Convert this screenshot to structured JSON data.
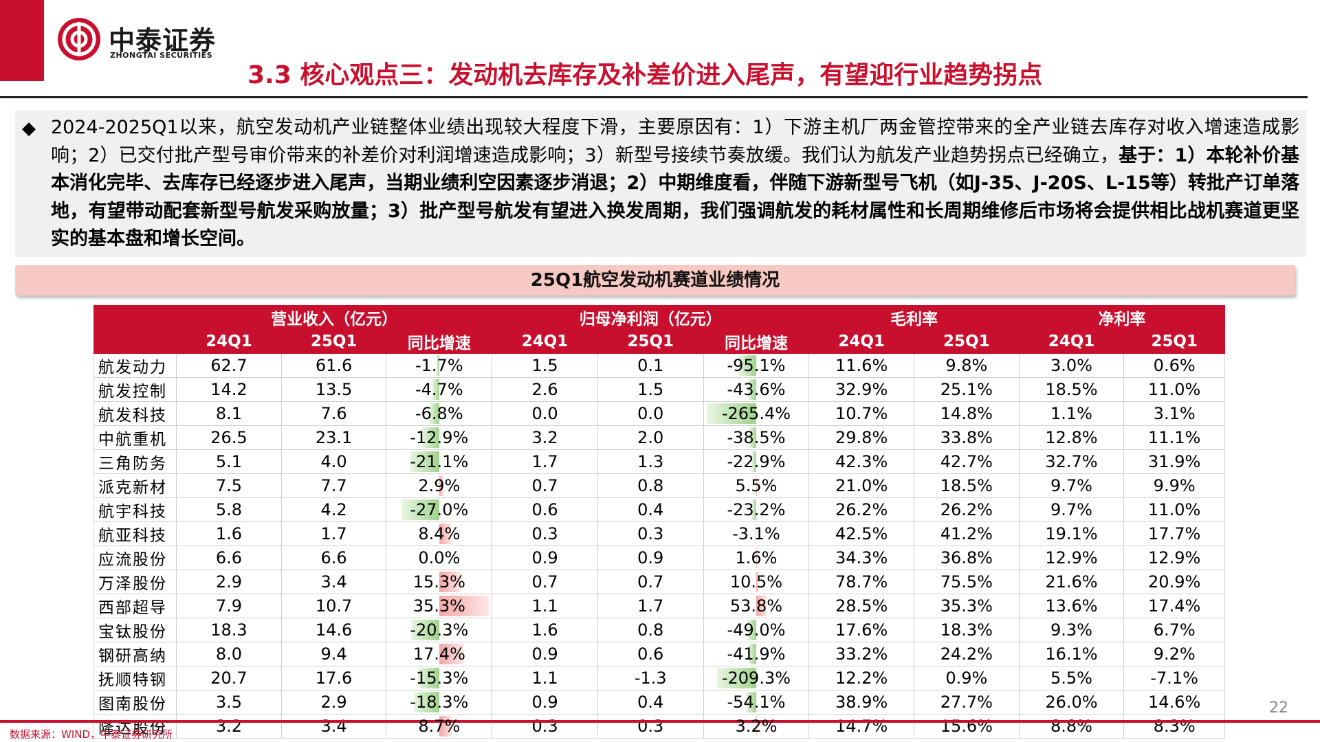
{
  "header": {
    "logo_cn": "中泰证券",
    "logo_en": "ZHONGTAI SECURITIES",
    "title": "3.3 核心观点三：发动机去库存及补差价进入尾声，有望迎行业趋势拐点"
  },
  "summary": {
    "bullet": "◆",
    "part1": "2024-2025Q1以来，航空发动机产业链整体业绩出现较大程度下滑，主要原因有：1）下游主机厂两金管控带来的全产业链去库存对收入增速造成影响；2）已交付批产型号审价带来的补差价对利润增速造成影响；3）新型号接续节奏放缓。我们认为航发产业趋势拐点已经确立，",
    "part2": "基于：1）本轮补价基本消化完毕、去库存已经逐步进入尾声，当期业绩利空因素逐步消退；2）中期维度看，伴随下游新型号飞机（如J-35、J-20S、L-15等）转批产订单落地，有望带动配套新型号航发采购放量；3）批产型号航发有望进入换发周期，我们强调航发的耗材属性和长周期维修后市场将会提供相比战机赛道更坚实的基本盘和增长空间。"
  },
  "section_title": "25Q1航空发动机赛道业绩情况",
  "table": {
    "groups": [
      "营业收入（亿元）",
      "归母净利润（亿元）",
      "毛利率",
      "净利率"
    ],
    "subheaders": [
      "24Q1",
      "25Q1",
      "同比增速",
      "24Q1",
      "25Q1",
      "同比增速",
      "24Q1",
      "25Q1",
      "24Q1",
      "25Q1"
    ],
    "rows": [
      {
        "name": "航发动力",
        "rev24": "62.7",
        "rev25": "61.6",
        "rev_yoy": "-1.7%",
        "rev_yoy_v": -1.7,
        "np24": "1.5",
        "np25": "0.1",
        "np_yoy": "-95.1%",
        "np_yoy_v": -95.1,
        "gm24": "11.6%",
        "gm25": "9.8%",
        "nm24": "3.0%",
        "nm25": "0.6%"
      },
      {
        "name": "航发控制",
        "rev24": "14.2",
        "rev25": "13.5",
        "rev_yoy": "-4.7%",
        "rev_yoy_v": -4.7,
        "np24": "2.6",
        "np25": "1.5",
        "np_yoy": "-43.6%",
        "np_yoy_v": -43.6,
        "gm24": "32.9%",
        "gm25": "25.1%",
        "nm24": "18.5%",
        "nm25": "11.0%"
      },
      {
        "name": "航发科技",
        "rev24": "8.1",
        "rev25": "7.6",
        "rev_yoy": "-6.8%",
        "rev_yoy_v": -6.8,
        "np24": "0.0",
        "np25": "0.0",
        "np_yoy": "-265.4%",
        "np_yoy_v": -265.4,
        "gm24": "10.7%",
        "gm25": "14.8%",
        "nm24": "1.1%",
        "nm25": "3.1%"
      },
      {
        "name": "中航重机",
        "rev24": "26.5",
        "rev25": "23.1",
        "rev_yoy": "-12.9%",
        "rev_yoy_v": -12.9,
        "np24": "3.2",
        "np25": "2.0",
        "np_yoy": "-38.5%",
        "np_yoy_v": -38.5,
        "gm24": "29.8%",
        "gm25": "33.8%",
        "nm24": "12.8%",
        "nm25": "11.1%"
      },
      {
        "name": "三角防务",
        "rev24": "5.1",
        "rev25": "4.0",
        "rev_yoy": "-21.1%",
        "rev_yoy_v": -21.1,
        "np24": "1.7",
        "np25": "1.3",
        "np_yoy": "-22.9%",
        "np_yoy_v": -22.9,
        "gm24": "42.3%",
        "gm25": "42.7%",
        "nm24": "32.7%",
        "nm25": "31.9%"
      },
      {
        "name": "派克新材",
        "rev24": "7.5",
        "rev25": "7.7",
        "rev_yoy": "2.9%",
        "rev_yoy_v": 2.9,
        "np24": "0.7",
        "np25": "0.8",
        "np_yoy": "5.5%",
        "np_yoy_v": 5.5,
        "gm24": "21.0%",
        "gm25": "18.5%",
        "nm24": "9.7%",
        "nm25": "9.9%"
      },
      {
        "name": "航宇科技",
        "rev24": "5.8",
        "rev25": "4.2",
        "rev_yoy": "-27.0%",
        "rev_yoy_v": -27.0,
        "np24": "0.6",
        "np25": "0.4",
        "np_yoy": "-23.2%",
        "np_yoy_v": -23.2,
        "gm24": "26.2%",
        "gm25": "26.2%",
        "nm24": "9.7%",
        "nm25": "11.0%"
      },
      {
        "name": "航亚科技",
        "rev24": "1.6",
        "rev25": "1.7",
        "rev_yoy": "8.4%",
        "rev_yoy_v": 8.4,
        "np24": "0.3",
        "np25": "0.3",
        "np_yoy": "-3.1%",
        "np_yoy_v": -3.1,
        "gm24": "42.5%",
        "gm25": "41.2%",
        "nm24": "19.1%",
        "nm25": "17.7%"
      },
      {
        "name": "应流股份",
        "rev24": "6.6",
        "rev25": "6.6",
        "rev_yoy": "0.0%",
        "rev_yoy_v": 0.0,
        "np24": "0.9",
        "np25": "0.9",
        "np_yoy": "1.6%",
        "np_yoy_v": 1.6,
        "gm24": "34.3%",
        "gm25": "36.8%",
        "nm24": "12.9%",
        "nm25": "12.9%"
      },
      {
        "name": "万泽股份",
        "rev24": "2.9",
        "rev25": "3.4",
        "rev_yoy": "15.3%",
        "rev_yoy_v": 15.3,
        "np24": "0.7",
        "np25": "0.7",
        "np_yoy": "10.5%",
        "np_yoy_v": 10.5,
        "gm24": "78.7%",
        "gm25": "75.5%",
        "nm24": "21.6%",
        "nm25": "20.9%"
      },
      {
        "name": "西部超导",
        "rev24": "7.9",
        "rev25": "10.7",
        "rev_yoy": "35.3%",
        "rev_yoy_v": 35.3,
        "np24": "1.1",
        "np25": "1.7",
        "np_yoy": "53.8%",
        "np_yoy_v": 53.8,
        "gm24": "28.5%",
        "gm25": "35.3%",
        "nm24": "13.6%",
        "nm25": "17.4%"
      },
      {
        "name": "宝钛股份",
        "rev24": "18.3",
        "rev25": "14.6",
        "rev_yoy": "-20.3%",
        "rev_yoy_v": -20.3,
        "np24": "1.6",
        "np25": "0.8",
        "np_yoy": "-49.0%",
        "np_yoy_v": -49.0,
        "gm24": "17.6%",
        "gm25": "18.3%",
        "nm24": "9.3%",
        "nm25": "6.7%"
      },
      {
        "name": "钢研高纳",
        "rev24": "8.0",
        "rev25": "9.4",
        "rev_yoy": "17.4%",
        "rev_yoy_v": 17.4,
        "np24": "0.9",
        "np25": "0.6",
        "np_yoy": "-41.9%",
        "np_yoy_v": -41.9,
        "gm24": "33.2%",
        "gm25": "24.2%",
        "nm24": "16.1%",
        "nm25": "9.2%"
      },
      {
        "name": "抚顺特钢",
        "rev24": "20.7",
        "rev25": "17.6",
        "rev_yoy": "-15.3%",
        "rev_yoy_v": -15.3,
        "np24": "1.1",
        "np25": "-1.3",
        "np_yoy": "-209.3%",
        "np_yoy_v": -209.3,
        "gm24": "12.2%",
        "gm25": "0.9%",
        "nm24": "5.5%",
        "nm25": "-7.1%"
      },
      {
        "name": "图南股份",
        "rev24": "3.5",
        "rev25": "2.9",
        "rev_yoy": "-18.3%",
        "rev_yoy_v": -18.3,
        "np24": "0.9",
        "np25": "0.4",
        "np_yoy": "-54.1%",
        "np_yoy_v": -54.1,
        "gm24": "38.9%",
        "gm25": "27.7%",
        "nm24": "26.0%",
        "nm25": "14.6%"
      },
      {
        "name": "隆达股份",
        "rev24": "3.2",
        "rev25": "3.4",
        "rev_yoy": "8.7%",
        "rev_yoy_v": 8.7,
        "np24": "0.3",
        "np25": "0.3",
        "np_yoy": "3.2%",
        "np_yoy_v": 3.2,
        "gm24": "14.7%",
        "gm25": "15.6%",
        "nm24": "8.8%",
        "nm25": "8.3%"
      }
    ]
  },
  "page_number": "22",
  "source": "数据来源：WIND，中泰证券研究所",
  "colors": {
    "brand_red": "#c8102e",
    "section_pink": "#f7c9c4",
    "summary_bg": "#f0f0f0",
    "bar_pos": "#f2a7a7",
    "bar_neg": "#9fd28b"
  }
}
